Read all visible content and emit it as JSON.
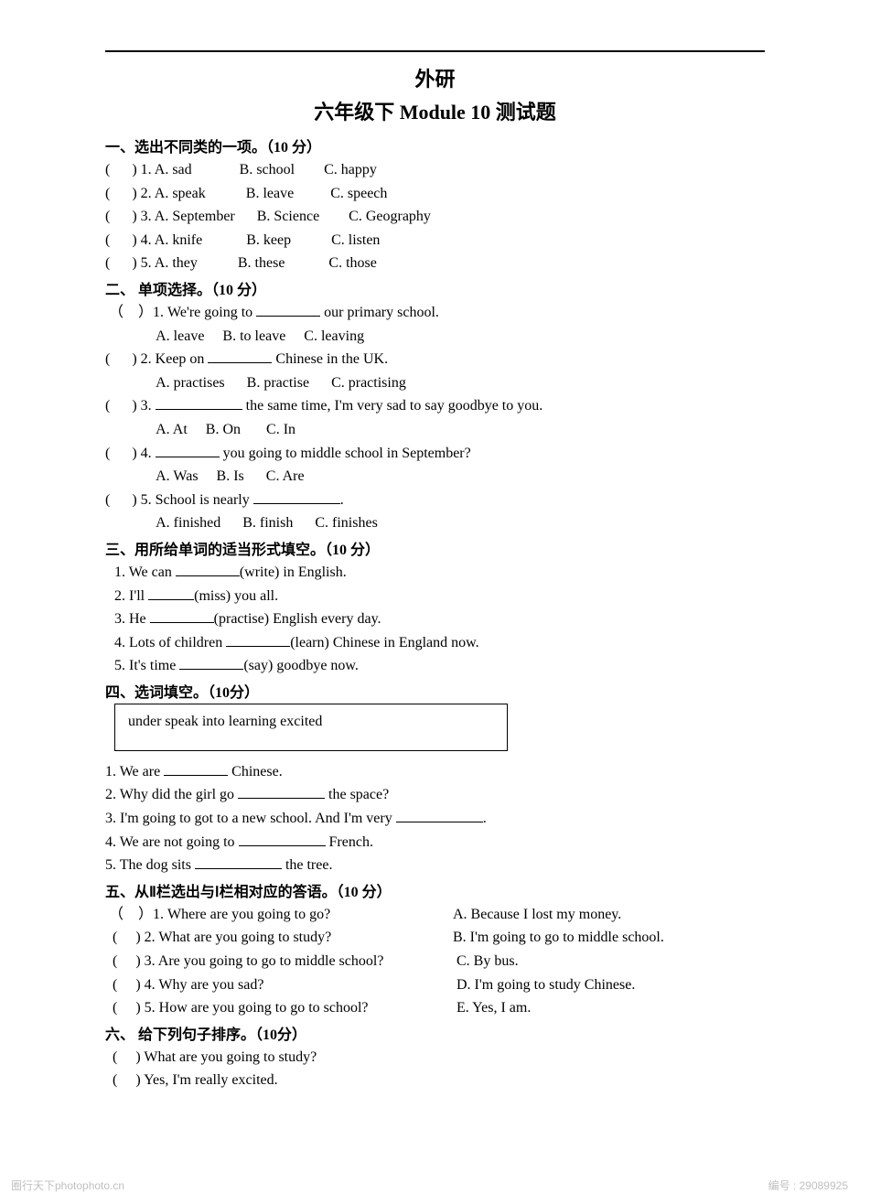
{
  "header": {
    "title1": "外研",
    "title2": "六年级下 Module 10 测试题"
  },
  "sections": {
    "s1": {
      "header": "一、选出不同类的一项。（10 分）",
      "items": [
        {
          "n": "1",
          "a": "sad",
          "b": "school",
          "c": "happy"
        },
        {
          "n": "2",
          "a": "speak",
          "b": "leave",
          "c": "speech"
        },
        {
          "n": "3",
          "a": "September",
          "b": "Science",
          "c": "Geography"
        },
        {
          "n": "4",
          "a": "knife",
          "b": "keep",
          "c": "listen"
        },
        {
          "n": "5",
          "a": "they",
          "b": "these",
          "c": "those"
        }
      ]
    },
    "s2": {
      "header": "二、 单项选择。（10 分）",
      "items": [
        {
          "n": "1",
          "q_pre": "We're going to ",
          "q_post": " our primary school.",
          "a": "leave",
          "b": "to leave",
          "c": "leaving",
          "paren_full": true
        },
        {
          "n": "2",
          "q_pre": "Keep on ",
          "q_post": " Chinese in the UK.",
          "a": "practises",
          "b": "practise",
          "c": "practising"
        },
        {
          "n": "3",
          "q_pre": "",
          "q_post": " the same time, I'm very sad to say goodbye to you.",
          "a": "At",
          "b": "On",
          "c": "In"
        },
        {
          "n": "4",
          "q_pre": "",
          "q_post": " you going to middle school in September?",
          "a": "Was",
          "b": "Is",
          "c": "Are"
        },
        {
          "n": "5",
          "q_pre": "School is nearly ",
          "q_post": ".",
          "a": "finished",
          "b": "finish",
          "c": "finishes"
        }
      ]
    },
    "s3": {
      "header": "三、用所给单词的适当形式填空。（10 分）",
      "items": [
        {
          "n": "1",
          "pre": "We can ",
          "word": "(write)",
          "post": " in English."
        },
        {
          "n": "2",
          "pre": "I'll ",
          "word": "(miss)",
          "post": " you all."
        },
        {
          "n": "3",
          "pre": "He ",
          "word": "(practise)",
          "post": " English every day."
        },
        {
          "n": "4",
          "pre": "Lots of children ",
          "word": "(learn)",
          "post": " Chinese in England now."
        },
        {
          "n": "5",
          "pre": "It's time ",
          "word": "(say)",
          "post": " goodbye now."
        }
      ]
    },
    "s4": {
      "header": "四、选词填空。（10分）",
      "words": "under     speak     into    learning     excited",
      "items": [
        {
          "n": "1",
          "pre": "We are ",
          "post": " Chinese."
        },
        {
          "n": "2",
          "pre": "Why did the girl go ",
          "post": " the space?"
        },
        {
          "n": "3",
          "pre": "I'm going to got to a new school. And I'm very ",
          "post": "."
        },
        {
          "n": "4",
          "pre": "We are not going to ",
          "post": " French."
        },
        {
          "n": "5",
          "pre": "The dog sits ",
          "post": " the tree."
        }
      ]
    },
    "s5": {
      "header": "五、从Ⅱ栏选出与Ⅰ栏相对应的答语。（10 分）",
      "items": [
        {
          "n": "1",
          "q": "Where are you going to go?",
          "ans": "A. Because I lost my money.",
          "paren_full": true
        },
        {
          "n": "2",
          "q": "What are you going to study?",
          "ans": "B. I'm going to go to middle school."
        },
        {
          "n": "3",
          "q": "Are you going to go to middle school?",
          "ans": " C. By bus."
        },
        {
          "n": "4",
          "q": "Why are you sad?",
          "ans": " D. I'm going to study Chinese."
        },
        {
          "n": "5",
          "q": "How are you going to go to school?",
          "ans": " E. Yes, I am."
        }
      ]
    },
    "s6": {
      "header": "六、 给下列句子排序。（10分）",
      "items": [
        {
          "text": "What are you going to study?"
        },
        {
          "text": "Yes, I'm really excited."
        }
      ]
    }
  },
  "footer": {
    "site": "圈行天下photophoto.cn",
    "id": "编号 : 29089925"
  },
  "colors": {
    "text": "#000000",
    "background": "#ffffff",
    "footer_text": "#c0c0c0"
  }
}
